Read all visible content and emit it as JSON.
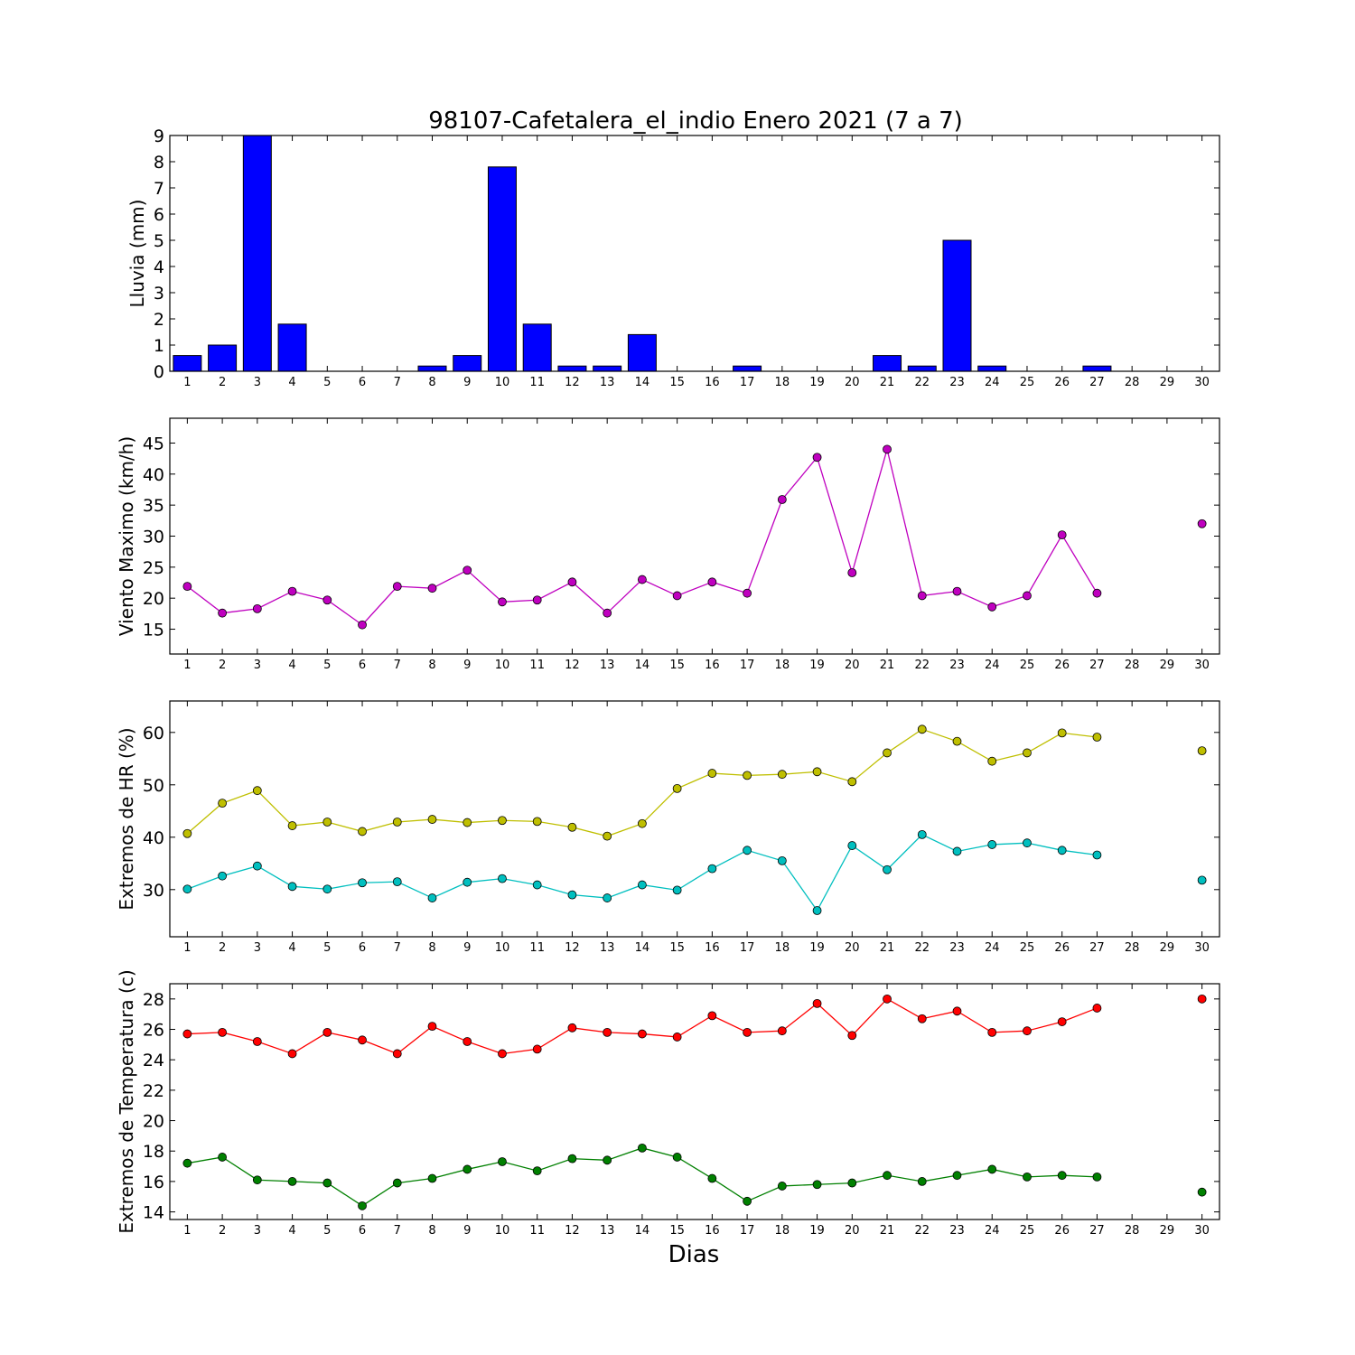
{
  "figure": {
    "title": "98107-Cafetalera_el_indio Enero 2021  (7 a 7)",
    "xlabel": "Dias"
  },
  "chart_data": [
    {
      "type": "bar",
      "ylabel": "Lluvia (mm)",
      "categories": [
        1,
        2,
        3,
        4,
        5,
        6,
        7,
        8,
        9,
        10,
        11,
        12,
        13,
        14,
        15,
        16,
        17,
        18,
        19,
        20,
        21,
        22,
        23,
        24,
        25,
        26,
        27,
        28,
        29,
        30
      ],
      "values": [
        0.6,
        1.0,
        9.0,
        1.8,
        0,
        0,
        0,
        0.2,
        0.6,
        7.8,
        1.8,
        0.2,
        0.2,
        1.4,
        0,
        0,
        0.2,
        0,
        0,
        0,
        0.6,
        0.2,
        5.0,
        0.2,
        0,
        0,
        0.2,
        null,
        null,
        null
      ],
      "ylim": [
        0,
        9
      ],
      "yticks": [
        0,
        1,
        2,
        3,
        4,
        5,
        6,
        7,
        8,
        9
      ],
      "xlim": [
        0.5,
        30.5
      ],
      "color": "#0000ff"
    },
    {
      "type": "line",
      "ylabel": "Viento Maximo (km/h)",
      "x": [
        1,
        2,
        3,
        4,
        5,
        6,
        7,
        8,
        9,
        10,
        11,
        12,
        13,
        14,
        15,
        16,
        17,
        18,
        19,
        20,
        21,
        22,
        23,
        24,
        25,
        26,
        27,
        28,
        29,
        30
      ],
      "series": [
        {
          "color": "#bf00bf",
          "values": [
            21.9,
            17.6,
            18.3,
            21.1,
            19.7,
            15.7,
            21.9,
            21.6,
            24.5,
            19.4,
            19.7,
            22.6,
            17.6,
            23.0,
            20.4,
            22.6,
            20.8,
            35.9,
            42.7,
            24.1,
            44.0,
            20.4,
            21.1,
            18.6,
            20.4,
            30.2,
            20.8,
            null,
            null,
            32.0
          ]
        }
      ],
      "ylim": [
        11,
        49
      ],
      "yticks": [
        15,
        20,
        25,
        30,
        35,
        40,
        45
      ],
      "xlim": [
        0.5,
        30.5
      ]
    },
    {
      "type": "line",
      "ylabel": "Extremos de HR (%)",
      "x": [
        1,
        2,
        3,
        4,
        5,
        6,
        7,
        8,
        9,
        10,
        11,
        12,
        13,
        14,
        15,
        16,
        17,
        18,
        19,
        20,
        21,
        22,
        23,
        24,
        25,
        26,
        27,
        28,
        29,
        30
      ],
      "series": [
        {
          "color": "#bfbf00",
          "values": [
            40.7,
            46.5,
            48.9,
            42.2,
            42.9,
            41.1,
            42.9,
            43.4,
            42.8,
            43.2,
            43.0,
            41.9,
            40.2,
            42.6,
            49.3,
            52.2,
            51.8,
            52.0,
            52.5,
            50.6,
            56.1,
            60.6,
            58.3,
            54.5,
            56.1,
            59.9,
            59.1,
            null,
            null,
            56.5
          ]
        },
        {
          "color": "#00bfbf",
          "values": [
            30.1,
            32.6,
            34.5,
            30.6,
            30.1,
            31.3,
            31.5,
            28.4,
            31.4,
            32.1,
            30.9,
            29.0,
            28.4,
            30.9,
            29.9,
            34.0,
            37.5,
            35.5,
            26.0,
            38.4,
            33.8,
            40.5,
            37.3,
            38.6,
            38.9,
            37.5,
            36.6,
            null,
            null,
            31.8
          ]
        }
      ],
      "ylim": [
        21,
        66
      ],
      "yticks": [
        30,
        40,
        50,
        60
      ],
      "xlim": [
        0.5,
        30.5
      ]
    },
    {
      "type": "line",
      "ylabel": "Extremos de Temperatura (c)",
      "x": [
        1,
        2,
        3,
        4,
        5,
        6,
        7,
        8,
        9,
        10,
        11,
        12,
        13,
        14,
        15,
        16,
        17,
        18,
        19,
        20,
        21,
        22,
        23,
        24,
        25,
        26,
        27,
        28,
        29,
        30
      ],
      "series": [
        {
          "color": "#ff0000",
          "values": [
            25.7,
            25.8,
            25.2,
            24.4,
            25.8,
            25.3,
            24.4,
            26.2,
            25.2,
            24.4,
            24.7,
            26.1,
            25.8,
            25.7,
            25.5,
            26.9,
            25.8,
            25.9,
            27.7,
            25.6,
            28.0,
            26.7,
            27.2,
            25.8,
            25.9,
            26.5,
            27.4,
            null,
            null,
            28.0
          ]
        },
        {
          "color": "#008000",
          "values": [
            17.2,
            17.6,
            16.1,
            16.0,
            15.9,
            14.4,
            15.9,
            16.2,
            16.8,
            17.3,
            16.7,
            17.5,
            17.4,
            18.2,
            17.6,
            16.2,
            14.7,
            15.7,
            15.8,
            15.9,
            16.4,
            16.0,
            16.4,
            16.8,
            16.3,
            16.4,
            16.3,
            null,
            null,
            15.3
          ]
        }
      ],
      "ylim": [
        13.5,
        29
      ],
      "yticks": [
        14,
        16,
        18,
        20,
        22,
        24,
        26,
        28
      ],
      "xlim": [
        0.5,
        30.5
      ]
    }
  ]
}
